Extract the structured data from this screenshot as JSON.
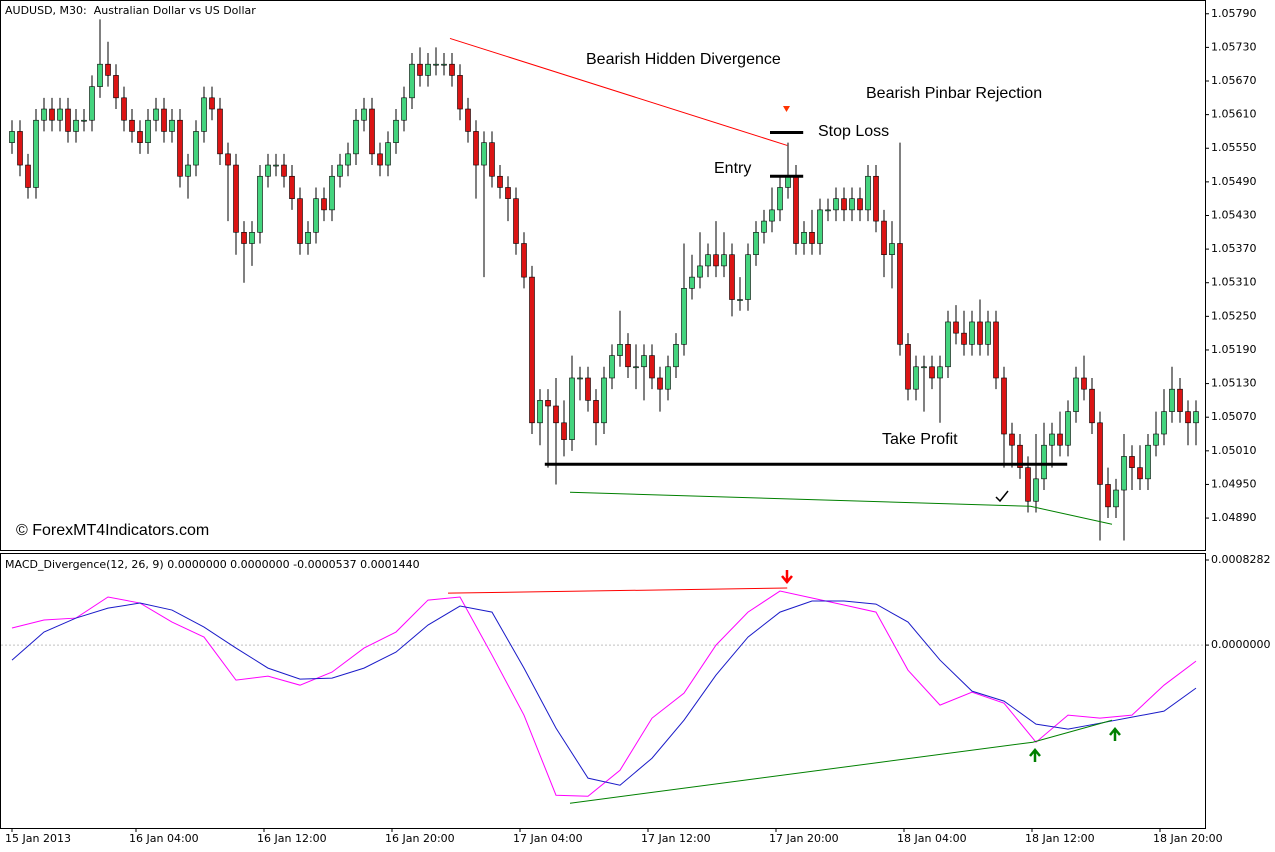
{
  "chart_data": [
    {
      "type": "candlestick",
      "title": "AUDUSD, M30:  Australian Dollar vs US Dollar",
      "annotations": [
        "Bearish Hidden Divergence",
        "Bearish Pinbar Rejection"
      ],
      "watermark": "© ForexMT4Indicators.com",
      "up_color": "#44d47e",
      "down_color": "#dc1414",
      "xlim": [
        -1.5,
        149.125
      ],
      "ylim": [
        1.04833,
        1.05811
      ],
      "yticks": [
        {
          "value": 1.0579,
          "label": "1.05790"
        },
        {
          "value": 1.0573,
          "label": "1.05730"
        },
        {
          "value": 1.0567,
          "label": "1.05670"
        },
        {
          "value": 1.0561,
          "label": "1.05610"
        },
        {
          "value": 1.0555,
          "label": "1.05550"
        },
        {
          "value": 1.0549,
          "label": "1.05490"
        },
        {
          "value": 1.0543,
          "label": "1.05430"
        },
        {
          "value": 1.0537,
          "label": "1.05370"
        },
        {
          "value": 1.0531,
          "label": "1.05310"
        },
        {
          "value": 1.0525,
          "label": "1.05250"
        },
        {
          "value": 1.0519,
          "label": "1.05190"
        },
        {
          "value": 1.0513,
          "label": "1.05130"
        },
        {
          "value": 1.0507,
          "label": "1.05070"
        },
        {
          "value": 1.0501,
          "label": "1.05010"
        },
        {
          "value": 1.0495,
          "label": "1.04950"
        },
        {
          "value": 1.0489,
          "label": "1.04890"
        }
      ],
      "open": [
        1.0556,
        1.0558,
        1.0552,
        1.0548,
        1.056,
        1.0562,
        1.056,
        1.0562,
        1.0558,
        1.056,
        1.056,
        1.0566,
        1.057,
        1.0568,
        1.0564,
        1.056,
        1.0558,
        1.0556,
        1.056,
        1.0562,
        1.0558,
        1.056,
        1.055,
        1.0552,
        1.0558,
        1.0564,
        1.0562,
        1.0554,
        1.0552,
        1.054,
        1.0538,
        1.054,
        1.055,
        1.0552,
        1.0552,
        1.055,
        1.0546,
        1.0538,
        1.054,
        1.0546,
        1.0544,
        1.055,
        1.0552,
        1.0554,
        1.056,
        1.0562,
        1.0554,
        1.0552,
        1.0556,
        1.056,
        1.0564,
        1.057,
        1.0568,
        1.057,
        1.057,
        1.057,
        1.0568,
        1.0562,
        1.0558,
        1.0552,
        1.0556,
        1.055,
        1.0548,
        1.0546,
        1.0538,
        1.0532,
        1.0506,
        1.051,
        1.0509,
        1.0506,
        1.0503,
        1.0514,
        1.0514,
        1.051,
        1.0506,
        1.0514,
        1.0518,
        1.052,
        1.0516,
        1.0516,
        1.0518,
        1.0514,
        1.0512,
        1.0516,
        1.052,
        1.053,
        1.0532,
        1.0534,
        1.0536,
        1.0534,
        1.0536,
        1.0528,
        1.0528,
        1.0536,
        1.054,
        1.0542,
        1.0544,
        1.0548,
        1.055,
        1.0538,
        1.054,
        1.0538,
        1.0544,
        1.0544,
        1.0546,
        1.0544,
        1.0546,
        1.0544,
        1.055,
        1.0542,
        1.0536,
        1.0538,
        1.052,
        1.0512,
        1.0516,
        1.0516,
        1.0514,
        1.0516,
        1.0524,
        1.0522,
        1.052,
        1.0524,
        1.052,
        1.0524,
        1.0514,
        1.0504,
        1.0502,
        1.0498,
        1.0492,
        1.0496,
        1.0502,
        1.0504,
        1.0502,
        1.0508,
        1.0514,
        1.0512,
        1.0506,
        1.0495,
        1.0491,
        1.0494,
        1.05,
        1.0498,
        1.0496,
        1.0502,
        1.0504,
        1.0508,
        1.0512,
        1.0508,
        1.0506
      ],
      "high": [
        1.056,
        1.056,
        1.0554,
        1.0562,
        1.0564,
        1.0564,
        1.0564,
        1.0564,
        1.0562,
        1.0562,
        1.0568,
        1.0578,
        1.0574,
        1.057,
        1.0566,
        1.0562,
        1.056,
        1.0562,
        1.0564,
        1.0564,
        1.0562,
        1.0562,
        1.0554,
        1.056,
        1.0566,
        1.0566,
        1.0564,
        1.0556,
        1.0554,
        1.0542,
        1.0542,
        1.0552,
        1.0554,
        1.0554,
        1.0554,
        1.0552,
        1.0548,
        1.0542,
        1.0548,
        1.0548,
        1.0552,
        1.0554,
        1.0556,
        1.0562,
        1.0564,
        1.0564,
        1.0556,
        1.0558,
        1.0562,
        1.0566,
        1.0572,
        1.0573,
        1.0572,
        1.0573,
        1.0572,
        1.0572,
        1.057,
        1.0564,
        1.056,
        1.0558,
        1.0558,
        1.0552,
        1.055,
        1.0548,
        1.054,
        1.0534,
        1.0512,
        1.0512,
        1.0514,
        1.051,
        1.0518,
        1.0516,
        1.0516,
        1.0512,
        1.0516,
        1.052,
        1.0526,
        1.0522,
        1.052,
        1.052,
        1.052,
        1.0516,
        1.0518,
        1.0522,
        1.0538,
        1.0536,
        1.054,
        1.0538,
        1.0542,
        1.054,
        1.0538,
        1.0532,
        1.0538,
        1.0542,
        1.0544,
        1.0548,
        1.055,
        1.0556,
        1.0552,
        1.0542,
        1.0544,
        1.0546,
        1.0546,
        1.0548,
        1.0548,
        1.0548,
        1.0548,
        1.0552,
        1.0552,
        1.0544,
        1.0542,
        1.0556,
        1.0522,
        1.0518,
        1.0518,
        1.0518,
        1.0518,
        1.0526,
        1.0527,
        1.0526,
        1.0526,
        1.0528,
        1.0526,
        1.0526,
        1.0516,
        1.0506,
        1.0504,
        1.05,
        1.0504,
        1.0506,
        1.0506,
        1.0508,
        1.051,
        1.0516,
        1.0518,
        1.0514,
        1.0508,
        1.0498,
        1.0496,
        1.0504,
        1.0502,
        1.0502,
        1.0504,
        1.0508,
        1.0512,
        1.0516,
        1.0514,
        1.051,
        1.051
      ],
      "low": [
        1.0554,
        1.055,
        1.0546,
        1.0546,
        1.0558,
        1.0558,
        1.0558,
        1.0556,
        1.0556,
        1.0558,
        1.0558,
        1.0564,
        1.0566,
        1.0562,
        1.0558,
        1.0556,
        1.0554,
        1.0554,
        1.0558,
        1.0556,
        1.0556,
        1.0548,
        1.0546,
        1.055,
        1.0556,
        1.056,
        1.0552,
        1.0542,
        1.0536,
        1.0531,
        1.0534,
        1.0538,
        1.0548,
        1.055,
        1.0548,
        1.0544,
        1.0536,
        1.0536,
        1.0538,
        1.0542,
        1.0542,
        1.0548,
        1.055,
        1.0552,
        1.0558,
        1.0552,
        1.055,
        1.055,
        1.0554,
        1.0558,
        1.0562,
        1.0566,
        1.0566,
        1.0568,
        1.0568,
        1.0566,
        1.056,
        1.0556,
        1.0546,
        1.0532,
        1.0548,
        1.0546,
        1.0542,
        1.0536,
        1.053,
        1.0504,
        1.0502,
        1.0498,
        1.0495,
        1.05,
        1.0501,
        1.051,
        1.0508,
        1.0502,
        1.0504,
        1.0512,
        1.0516,
        1.0514,
        1.0512,
        1.051,
        1.0512,
        1.0508,
        1.051,
        1.0514,
        1.0518,
        1.0528,
        1.053,
        1.0532,
        1.0532,
        1.0532,
        1.0525,
        1.0526,
        1.0526,
        1.0534,
        1.0538,
        1.054,
        1.0542,
        1.0546,
        1.0536,
        1.0536,
        1.0536,
        1.0536,
        1.0542,
        1.0542,
        1.0542,
        1.0542,
        1.0542,
        1.0542,
        1.054,
        1.0532,
        1.053,
        1.0518,
        1.051,
        1.051,
        1.0508,
        1.0512,
        1.0506,
        1.0514,
        1.052,
        1.0518,
        1.0518,
        1.0518,
        1.0518,
        1.0512,
        1.0498,
        1.0498,
        1.0496,
        1.049,
        1.049,
        1.0494,
        1.0498,
        1.05,
        1.05,
        1.0506,
        1.051,
        1.0504,
        1.0485,
        1.0489,
        1.0489,
        1.0485,
        1.0494,
        1.0494,
        1.0494,
        1.05,
        1.0502,
        1.0506,
        1.0506,
        1.0502,
        1.0502
      ],
      "close": [
        1.0558,
        1.0552,
        1.0548,
        1.056,
        1.0562,
        1.056,
        1.0562,
        1.0558,
        1.056,
        1.056,
        1.0566,
        1.057,
        1.0568,
        1.0564,
        1.056,
        1.0558,
        1.0556,
        1.056,
        1.0562,
        1.0558,
        1.056,
        1.055,
        1.0552,
        1.0558,
        1.0564,
        1.0562,
        1.0554,
        1.0552,
        1.054,
        1.0538,
        1.054,
        1.055,
        1.0552,
        1.0552,
        1.055,
        1.0546,
        1.0538,
        1.054,
        1.0546,
        1.0544,
        1.055,
        1.0552,
        1.0554,
        1.056,
        1.0562,
        1.0554,
        1.0552,
        1.0556,
        1.056,
        1.0564,
        1.057,
        1.0568,
        1.057,
        1.057,
        1.057,
        1.0568,
        1.0562,
        1.0558,
        1.0552,
        1.0556,
        1.055,
        1.0548,
        1.0546,
        1.0538,
        1.0532,
        1.0506,
        1.051,
        1.0509,
        1.0506,
        1.0503,
        1.0514,
        1.0514,
        1.051,
        1.0506,
        1.0514,
        1.0518,
        1.052,
        1.0516,
        1.0516,
        1.0518,
        1.0514,
        1.0512,
        1.0516,
        1.052,
        1.053,
        1.0532,
        1.0534,
        1.0536,
        1.0534,
        1.0536,
        1.0528,
        1.0528,
        1.0536,
        1.054,
        1.0542,
        1.0544,
        1.0548,
        1.055,
        1.0538,
        1.054,
        1.0538,
        1.0544,
        1.0544,
        1.0546,
        1.0544,
        1.0546,
        1.0544,
        1.055,
        1.0542,
        1.0536,
        1.0538,
        1.052,
        1.0512,
        1.0516,
        1.0516,
        1.0514,
        1.0516,
        1.0524,
        1.0522,
        1.052,
        1.0524,
        1.052,
        1.0524,
        1.0514,
        1.0504,
        1.0502,
        1.0498,
        1.0492,
        1.0496,
        1.0502,
        1.0504,
        1.0502,
        1.0508,
        1.0514,
        1.0512,
        1.0506,
        1.0495,
        1.0491,
        1.0494,
        1.05,
        1.0498,
        1.0496,
        1.0502,
        1.0504,
        1.0508,
        1.0512,
        1.0508,
        1.0506,
        1.0508
      ],
      "levels": [
        {
          "label": "Stop Loss",
          "value": 1.05578,
          "from": 94.75,
          "to": 98.9
        },
        {
          "label": "Entry",
          "value": 1.055,
          "from": 94.75,
          "to": 98.9
        },
        {
          "label": "Take Profit",
          "value": 1.04986,
          "from": 66.6,
          "to": 131.9
        }
      ],
      "trend_lines": [
        {
          "color": "#ff0000",
          "x": [
            54.75,
            96.9
          ],
          "values": [
            1.05746,
            1.05555
          ]
        },
        {
          "color": "#008000",
          "x": [
            69.75,
            127.3,
            137.5
          ],
          "values": [
            1.04936,
            1.04911,
            1.04879
          ]
        }
      ]
    },
    {
      "type": "line",
      "title": "MACD_Divergence(12, 26, 9) 0.0000000 0.0000000 -0.0000537 0.0001440",
      "xlim": [
        -1.5,
        149.125
      ],
      "ylim": [
        -0.00178,
        0.000867
      ],
      "yticks": [
        {
          "value": 0.0008282,
          "label": "0.0008282"
        },
        {
          "value": 0,
          "label": "0.0000000"
        }
      ],
      "zero_line": true,
      "xticks": [
        {
          "value": 0,
          "label": "15 Jan 2013"
        },
        {
          "value": 15.5,
          "label": "16 Jan 04:00"
        },
        {
          "value": 31.5,
          "label": "16 Jan 12:00"
        },
        {
          "value": 47.5,
          "label": "16 Jan 20:00"
        },
        {
          "value": 63.5,
          "label": "17 Jan 04:00"
        },
        {
          "value": 79.5,
          "label": "17 Jan 12:00"
        },
        {
          "value": 95.5,
          "label": "17 Jan 20:00"
        },
        {
          "value": 111.5,
          "label": "18 Jan 04:00"
        },
        {
          "value": 127.5,
          "label": "18 Jan 12:00"
        },
        {
          "value": 143.5,
          "label": "18 Jan 20:00"
        }
      ],
      "x": [
        0,
        4,
        8,
        12,
        16,
        20,
        24,
        28,
        32,
        36,
        40,
        44,
        48,
        52,
        56,
        60,
        64,
        68,
        72,
        76,
        80,
        84,
        88,
        92,
        96,
        100,
        104,
        108,
        112,
        116,
        120,
        124,
        128,
        132,
        136,
        140,
        144,
        148
      ],
      "series": [
        {
          "color": "#ff00ff",
          "values": [
            0.000166,
            0.000244,
            0.000263,
            0.000468,
            0.000409,
            0.000224,
            7.8e-05,
            -0.000341,
            -0.000302,
            -0.00039,
            -0.000263,
            -2.9e-05,
            0.000127,
            0.000438,
            0.000468,
            -9.7e-05,
            -0.000682,
            -0.001461,
            -0.001471,
            -0.001218,
            -0.000711,
            -0.000468,
            0,
            0.000321,
            0.000526,
            0.000458,
            0.00039,
            0.000321,
            -0.000244,
            -0.000584,
            -0.000458,
            -0.000565,
            -0.000945,
            -0.000682,
            -0.000711,
            -0.000682,
            -0.00039,
            -0.000156
          ]
        },
        {
          "color": "#1a1ac8",
          "values": [
            -0.000146,
            0.000127,
            0.000263,
            0.00036,
            0.000409,
            0.000341,
            0.000175,
            -2.9e-05,
            -0.000224,
            -0.000331,
            -0.000321,
            -0.000224,
            -6.8e-05,
            0.000195,
            0.00038,
            0.000321,
            -0.000224,
            -0.000808,
            -0.001295,
            -0.001364,
            -0.001101,
            -0.000731,
            -0.000292,
            7.8e-05,
            0.000321,
            0.000429,
            0.000429,
            0.000399,
            0.000224,
            -0.000146,
            -0.000448,
            -0.000545,
            -0.000769,
            -0.000818,
            -0.00076,
            -0.000701,
            -0.000643,
            -0.000419
          ]
        }
      ],
      "trend_lines": [
        {
          "color": "#ff0000",
          "x": [
            54.5,
            96.9
          ],
          "values": [
            0.000506,
            0.000555
          ]
        },
        {
          "color": "#008000",
          "x": [
            69.75,
            127.6,
            137.5
          ],
          "values": [
            -0.001539,
            -0.000945,
            -0.000731
          ]
        }
      ]
    }
  ]
}
